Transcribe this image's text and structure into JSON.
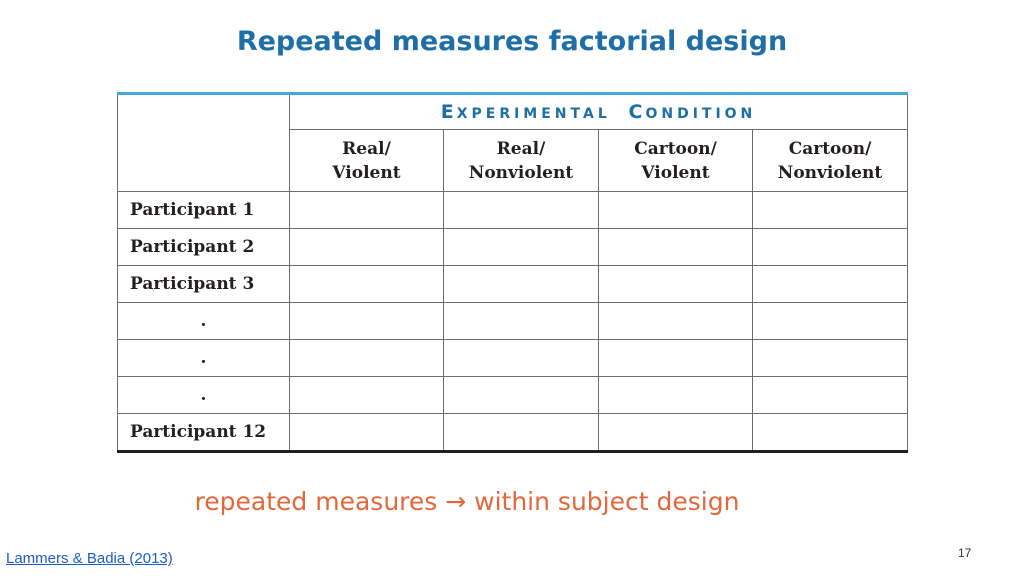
{
  "title": "Repeated measures factorial design",
  "table": {
    "condition_first": "E",
    "condition_first_rest": "XPERIMENTAL",
    "condition_second": "C",
    "condition_second_rest": "ONDITION",
    "columns": [
      {
        "line1": "Real/",
        "line2": "Violent"
      },
      {
        "line1": "Real/",
        "line2": "Nonviolent"
      },
      {
        "line1": "Cartoon/",
        "line2": "Violent"
      },
      {
        "line1": "Cartoon/",
        "line2": "Nonviolent"
      }
    ],
    "rows": [
      "Participant 1",
      "Participant 2",
      "Participant 3",
      ".",
      ".",
      ".",
      "Participant 12"
    ]
  },
  "note": "repeated measures → within subject design",
  "citation": "Lammers & Badia (2013)",
  "page_number": "17"
}
